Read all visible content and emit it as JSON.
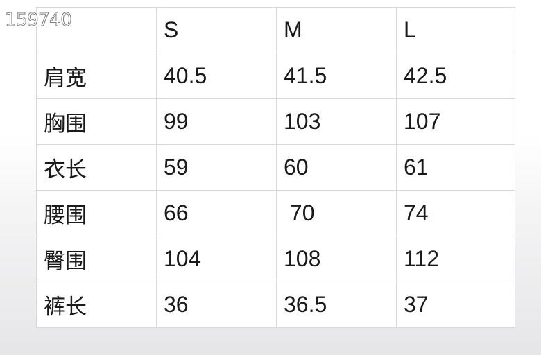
{
  "watermark": "159740",
  "table": {
    "header": [
      "",
      "S",
      "M",
      "L"
    ],
    "rows": [
      {
        "label": "肩宽",
        "values": [
          "40.5",
          "41.5",
          "42.5"
        ]
      },
      {
        "label": "胸围",
        "values": [
          "99",
          "103",
          "107"
        ]
      },
      {
        "label": "衣长",
        "values": [
          "59",
          "60",
          "61"
        ]
      },
      {
        "label": "腰围",
        "values": [
          "66",
          " 70",
          "74"
        ]
      },
      {
        "label": "臀围",
        "values": [
          "104",
          "108",
          "112"
        ]
      },
      {
        "label": "裤长",
        "values": [
          "36",
          "36.5",
          "37"
        ]
      }
    ]
  }
}
